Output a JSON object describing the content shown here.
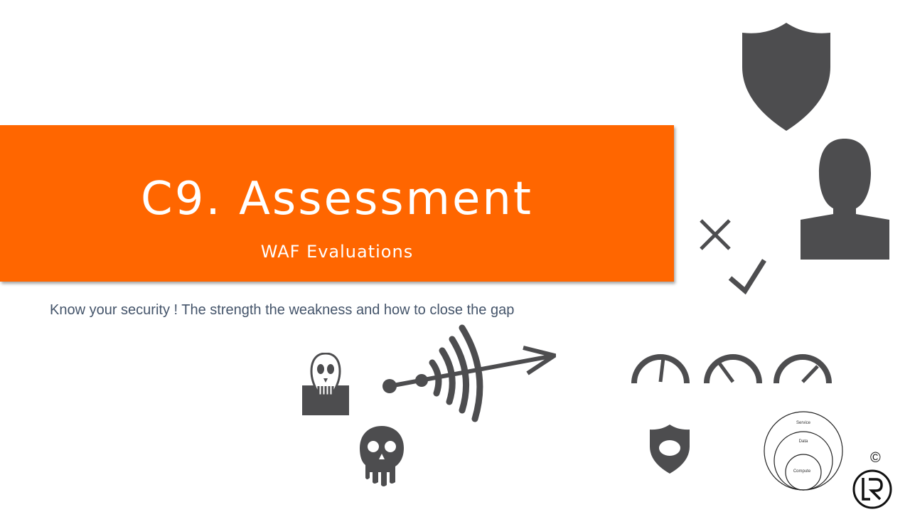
{
  "slide": {
    "title": "C9. Assessment",
    "subtitle": "WAF Evaluations",
    "tagline": "Know your security ! The strength the weakness and how to close the gap",
    "accent_color": "#ff6600",
    "icon_color": "#4d4d4f",
    "icons": [
      "shield-icon",
      "user-silhouette-icon",
      "cross-mark-icon",
      "check-mark-icon",
      "hacker-mask-icon",
      "signal-arrow-icon",
      "gauge-icon",
      "skull-icon",
      "small-shield-icon",
      "logo-icon"
    ]
  },
  "layers_diagram": {
    "outer": "Service",
    "middle": "Data",
    "inner": "Compute"
  },
  "copyright": "©"
}
